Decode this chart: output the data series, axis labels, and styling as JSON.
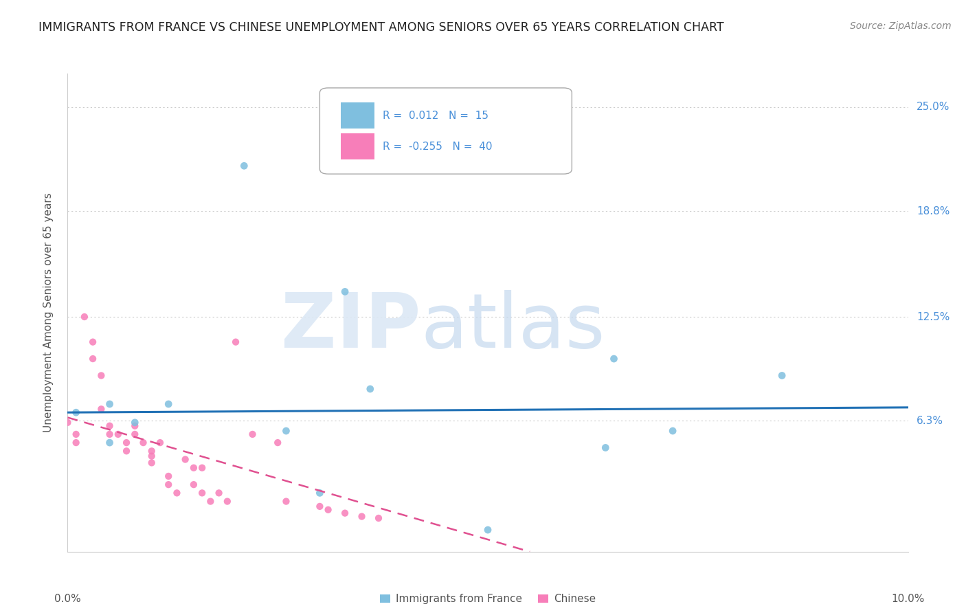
{
  "title": "IMMIGRANTS FROM FRANCE VS CHINESE UNEMPLOYMENT AMONG SENIORS OVER 65 YEARS CORRELATION CHART",
  "source": "Source: ZipAtlas.com",
  "ylabel": "Unemployment Among Seniors over 65 years",
  "legend_blue_R": "0.012",
  "legend_blue_N": "15",
  "legend_pink_R": "-0.255",
  "legend_pink_N": "40",
  "ytick_labels": [
    "6.3%",
    "12.5%",
    "18.8%",
    "25.0%"
  ],
  "ytick_values": [
    0.063,
    0.125,
    0.188,
    0.25
  ],
  "xlim": [
    0.0,
    0.1
  ],
  "ylim": [
    -0.015,
    0.27
  ],
  "blue_color": "#7fbfdf",
  "pink_color": "#f77eb9",
  "blue_line_color": "#2171b5",
  "pink_line_color": "#e05090",
  "right_label_color": "#4a90d9",
  "blue_points_x": [
    0.021,
    0.001,
    0.005,
    0.008,
    0.005,
    0.012,
    0.036,
    0.033,
    0.026,
    0.065,
    0.085,
    0.064,
    0.03,
    0.05,
    0.072
  ],
  "blue_points_y": [
    0.215,
    0.068,
    0.073,
    0.062,
    0.05,
    0.073,
    0.082,
    0.14,
    0.057,
    0.1,
    0.09,
    0.047,
    0.02,
    -0.002,
    0.057
  ],
  "pink_points_x": [
    0.0,
    0.001,
    0.001,
    0.002,
    0.003,
    0.003,
    0.004,
    0.004,
    0.005,
    0.005,
    0.006,
    0.007,
    0.007,
    0.008,
    0.008,
    0.009,
    0.01,
    0.01,
    0.01,
    0.011,
    0.012,
    0.012,
    0.013,
    0.014,
    0.015,
    0.015,
    0.016,
    0.016,
    0.017,
    0.018,
    0.019,
    0.02,
    0.022,
    0.025,
    0.026,
    0.03,
    0.031,
    0.033,
    0.035,
    0.037
  ],
  "pink_points_y": [
    0.062,
    0.055,
    0.05,
    0.125,
    0.11,
    0.1,
    0.09,
    0.07,
    0.055,
    0.06,
    0.055,
    0.05,
    0.045,
    0.06,
    0.055,
    0.05,
    0.045,
    0.042,
    0.038,
    0.05,
    0.03,
    0.025,
    0.02,
    0.04,
    0.035,
    0.025,
    0.035,
    0.02,
    0.015,
    0.02,
    0.015,
    0.11,
    0.055,
    0.05,
    0.015,
    0.012,
    0.01,
    0.008,
    0.006,
    0.005
  ],
  "blue_trendline_x": [
    0.0,
    0.1
  ],
  "blue_trendline_y": [
    0.068,
    0.071
  ],
  "pink_trendline_x": [
    0.0,
    0.055
  ],
  "pink_trendline_y": [
    0.065,
    -0.015
  ]
}
